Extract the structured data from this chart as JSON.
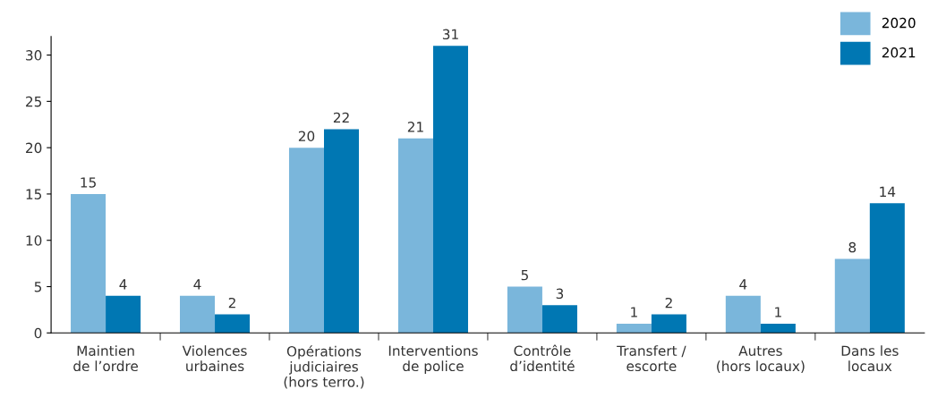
{
  "chart_data": {
    "type": "bar",
    "categories": [
      "Maintien\nde l’ordre",
      "Violences\nurbaines",
      "Opérations\njudiciaires\n(hors terro.)",
      "Interventions\nde police",
      "Contrôle\nd’identité",
      "Transfert /\nescorte",
      "Autres\n(hors locaux)",
      "Dans les\nlocaux"
    ],
    "series": [
      {
        "name": "2020",
        "color": "#7ab6db",
        "values": [
          15,
          4,
          20,
          21,
          5,
          1,
          4,
          8
        ]
      },
      {
        "name": "2021",
        "color": "#0077b3",
        "values": [
          4,
          2,
          22,
          31,
          3,
          2,
          1,
          14
        ]
      }
    ],
    "ylim": [
      0,
      32
    ],
    "yticks": [
      0,
      5,
      10,
      15,
      20,
      25,
      30
    ],
    "grid": false,
    "legend": "top right",
    "data_labels": true
  }
}
